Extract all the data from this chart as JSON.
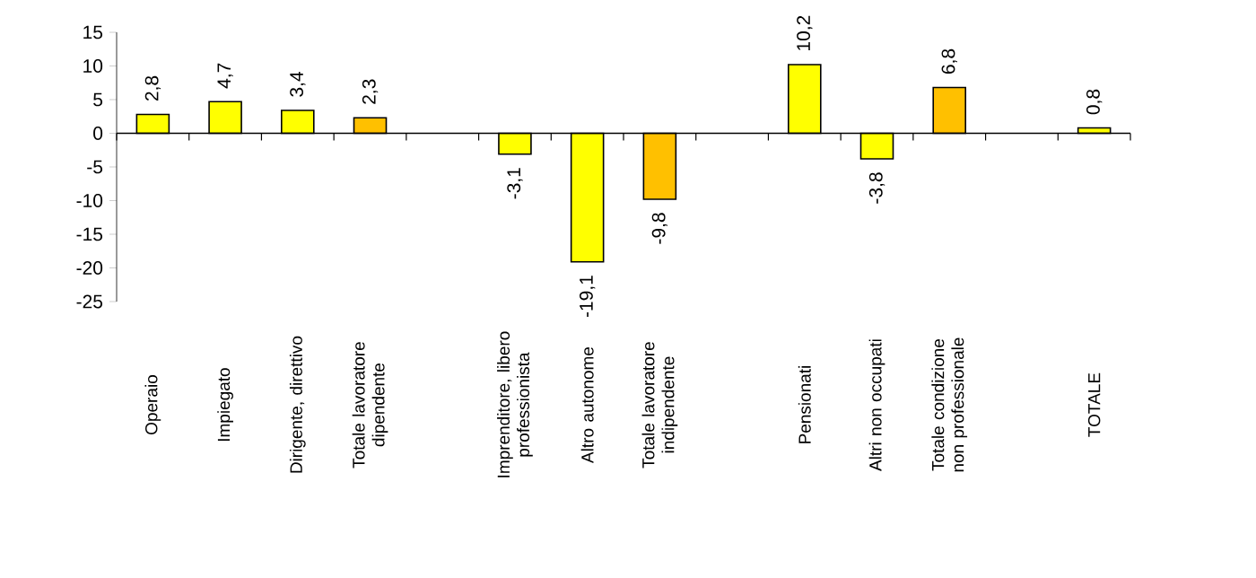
{
  "chart_data": {
    "type": "bar",
    "categories": [
      "Operaio",
      "Impiegato",
      "Dirigente, direttivo",
      "Totale lavoratore dipendente",
      null,
      "Imprenditore, libero professionista",
      "Altro autonome",
      "Totale lavoratore indipendente",
      null,
      "Pensionati",
      "Altri non occupati",
      "Totale condizione non professionale",
      null,
      "TOTALE"
    ],
    "values": [
      2.8,
      4.7,
      3.4,
      2.3,
      null,
      -3.1,
      -19.1,
      -9.8,
      null,
      10.2,
      -3.8,
      6.8,
      null,
      0.8
    ],
    "colors": [
      "#ffff00",
      "#ffff00",
      "#ffff00",
      "#ffc000",
      null,
      "#ffff00",
      "#ffff00",
      "#ffc000",
      null,
      "#ffff00",
      "#ffff00",
      "#ffc000",
      null,
      "#ffff00"
    ],
    "value_labels": [
      "2,8",
      "4,7",
      "3,4",
      "2,3",
      null,
      "-3,1",
      "-19,1",
      "-9,8",
      null,
      "10,2",
      "-3,8",
      "6,8",
      null,
      "0,8"
    ],
    "ylim": [
      -25,
      15
    ],
    "yticks": [
      -25,
      -20,
      -15,
      -10,
      -5,
      0,
      5,
      10,
      15
    ]
  }
}
